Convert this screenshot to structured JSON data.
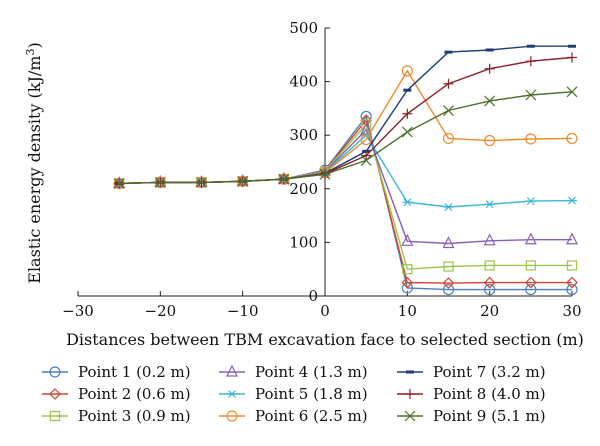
{
  "chart_data": {
    "type": "line",
    "xlabel": "Distances between TBM excavation face to selected section (m)",
    "ylabel": "Elastic energy density (kJ/m",
    "ylabel_sup": "3",
    "ylabel_end": ")",
    "xlim": [
      -30,
      30
    ],
    "ylim": [
      0,
      500
    ],
    "xticks": [
      -30,
      -20,
      -10,
      0,
      10,
      20,
      30
    ],
    "yticks": [
      0,
      100,
      200,
      300,
      400,
      500
    ],
    "grid": false,
    "legend_position": "bottom",
    "x": [
      -25,
      -20,
      -15,
      -10,
      -5,
      0,
      5,
      10,
      15,
      20,
      25,
      30
    ],
    "series": [
      {
        "name": "Point 1 (0.2 m)",
        "color": "#4a7fc1",
        "marker": "circle",
        "values": [
          210,
          212,
          212,
          214,
          218,
          235,
          335,
          15,
          12,
          12,
          12,
          12
        ]
      },
      {
        "name": "Point 2 (0.6 m)",
        "color": "#d2452b",
        "marker": "diamond",
        "values": [
          210,
          212,
          212,
          214,
          218,
          234,
          328,
          25,
          24,
          25,
          25,
          25
        ]
      },
      {
        "name": "Point 3 (0.9 m)",
        "color": "#9bc54a",
        "marker": "square",
        "values": [
          210,
          212,
          212,
          214,
          218,
          233,
          320,
          50,
          55,
          57,
          57,
          57
        ]
      },
      {
        "name": "Point 4 (1.3 m)",
        "color": "#8660b6",
        "marker": "triangle",
        "values": [
          210,
          212,
          212,
          214,
          218,
          232,
          310,
          102,
          98,
          103,
          105,
          105
        ]
      },
      {
        "name": "Point 5 (1.8 m)",
        "color": "#3ab6d6",
        "marker": "asterisk",
        "values": [
          210,
          212,
          212,
          214,
          218,
          231,
          300,
          175,
          166,
          171,
          177,
          178
        ]
      },
      {
        "name": "Point 6 (2.5 m)",
        "color": "#f08a2c",
        "marker": "circle",
        "values": [
          210,
          212,
          212,
          214,
          218,
          230,
          292,
          420,
          294,
          290,
          293,
          294
        ]
      },
      {
        "name": "Point 7 (3.2 m)",
        "color": "#1f3e73",
        "marker": "dash",
        "values": [
          210,
          212,
          212,
          214,
          218,
          229,
          270,
          384,
          455,
          459,
          466,
          466
        ]
      },
      {
        "name": "Point 8 (4.0 m)",
        "color": "#8b1f28",
        "marker": "plus",
        "values": [
          210,
          212,
          212,
          214,
          218,
          228,
          262,
          340,
          396,
          424,
          438,
          445
        ]
      },
      {
        "name": "Point 9 (5.1 m)",
        "color": "#4b6e2a",
        "marker": "x",
        "values": [
          210,
          212,
          212,
          214,
          218,
          227,
          253,
          306,
          346,
          364,
          375,
          381
        ]
      }
    ]
  }
}
